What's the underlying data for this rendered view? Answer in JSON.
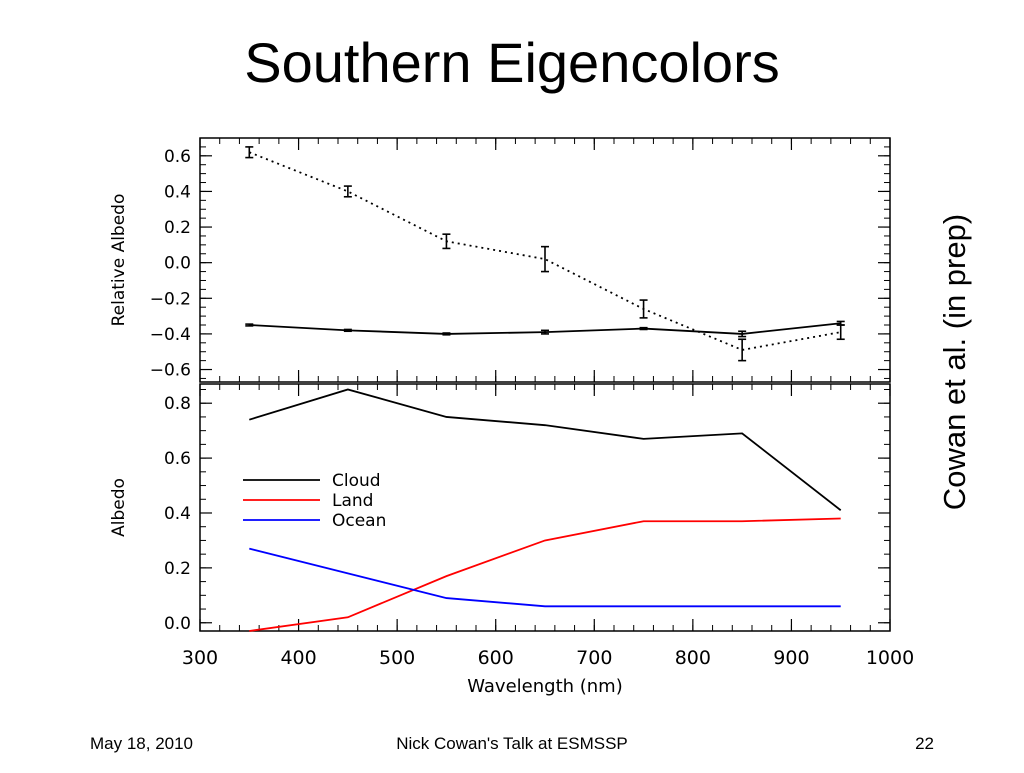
{
  "slide": {
    "title": "Southern Eigencolors",
    "side_note": "Cowan et al. (in prep)",
    "footer": {
      "date": "May 18, 2010",
      "talk": "Nick Cowan's Talk at ESMSSP",
      "page": "22"
    }
  },
  "chart_data": [
    {
      "type": "line",
      "title": "",
      "xlabel": "",
      "ylabel": "Relative Albedo",
      "xlim": [
        300,
        1000
      ],
      "ylim": [
        -0.67,
        0.7
      ],
      "yticks": [
        "0.6",
        "0.4",
        "0.2",
        "0.0",
        "−0.2",
        "−0.4",
        "−0.6"
      ],
      "ytick_values": [
        0.6,
        0.4,
        0.2,
        0.0,
        -0.2,
        -0.4,
        -0.6
      ],
      "x": [
        350,
        450,
        550,
        650,
        750,
        850,
        950
      ],
      "series": [
        {
          "style": "dotted",
          "color": "#000000",
          "values": [
            0.62,
            0.4,
            0.12,
            0.02,
            -0.26,
            -0.49,
            -0.39
          ],
          "errors": [
            0.03,
            0.03,
            0.04,
            0.07,
            0.05,
            0.06,
            0.04
          ]
        },
        {
          "style": "solid",
          "color": "#000000",
          "values": [
            -0.35,
            -0.38,
            -0.4,
            -0.39,
            -0.37,
            -0.4,
            -0.34
          ],
          "errors": [
            0.005,
            0.005,
            0.005,
            0.01,
            0.005,
            0.015,
            0.01
          ]
        }
      ]
    },
    {
      "type": "line",
      "title": "",
      "xlabel": "Wavelength (nm)",
      "ylabel": "Albedo",
      "xlim": [
        300,
        1000
      ],
      "ylim": [
        -0.03,
        0.87
      ],
      "xticks": [
        "300",
        "400",
        "500",
        "600",
        "700",
        "800",
        "900",
        "1000"
      ],
      "xtick_values": [
        300,
        400,
        500,
        600,
        700,
        800,
        900,
        1000
      ],
      "yticks": [
        "0.8",
        "0.6",
        "0.4",
        "0.2",
        "0.0"
      ],
      "ytick_values": [
        0.8,
        0.6,
        0.4,
        0.2,
        0.0
      ],
      "legend_position": "middle-left",
      "x": [
        350,
        450,
        550,
        650,
        750,
        850,
        950
      ],
      "series": [
        {
          "name": "Cloud",
          "color": "#000000",
          "values": [
            0.74,
            0.85,
            0.75,
            0.72,
            0.67,
            0.69,
            0.41
          ]
        },
        {
          "name": "Land",
          "color": "#ff0000",
          "values": [
            -0.03,
            0.02,
            0.17,
            0.3,
            0.37,
            0.37,
            0.38
          ]
        },
        {
          "name": "Ocean",
          "color": "#0000ff",
          "values": [
            0.27,
            0.18,
            0.09,
            0.06,
            0.06,
            0.06,
            0.06
          ]
        }
      ]
    }
  ]
}
